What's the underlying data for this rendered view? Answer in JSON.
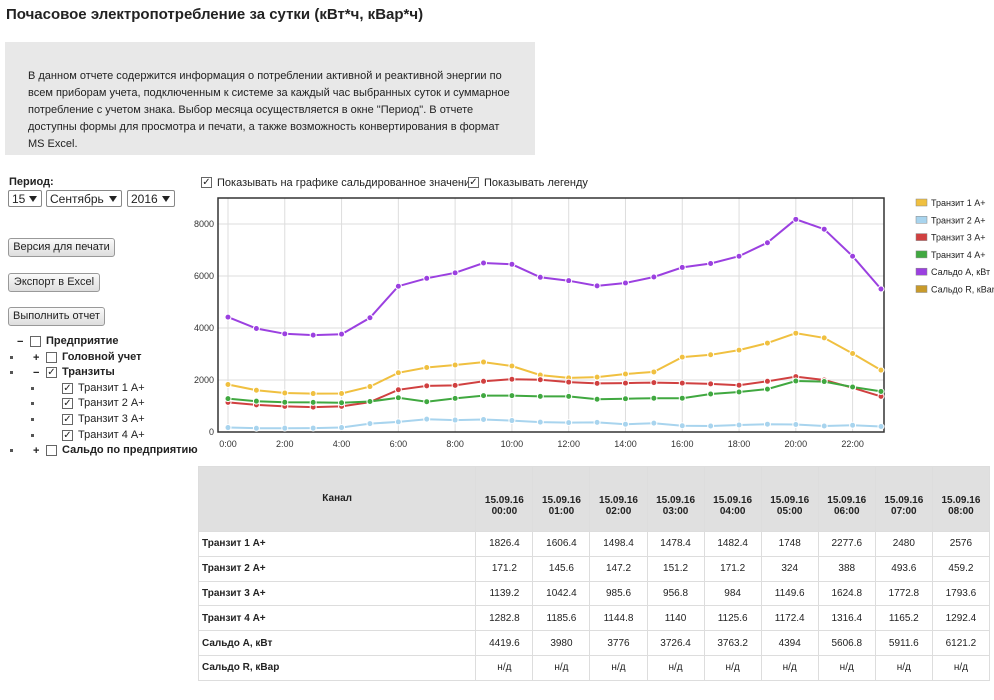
{
  "header": {
    "title": "Почасовое электропотребление за сутки (кВт*ч, кВар*ч)"
  },
  "intro": "В данном отчете содержится информация о потреблении активной и реактивной энергии по всем приборам учета, подключенным к системе за каждый час выбранных суток и суммарное потребление с учетом знака. Выбор месяца осуществляется в окне \"Период\". В отчете доступны формы для просмотра и печати, а также возможность конвертирования в формат MS Excel.",
  "period": {
    "label": "Период:",
    "day": "15",
    "month": "Сентябрь",
    "year": "2016"
  },
  "buttons": [
    "Версия для печати",
    "Экспорт в Excel",
    "Выполнить отчет"
  ],
  "options": [
    {
      "label": "Показывать на графике сальдированное значения",
      "checked": true
    },
    {
      "label": "Показывать легенду",
      "checked": true
    }
  ],
  "tree": [
    {
      "label": "Предприятие",
      "level": 0,
      "expander": "−",
      "checked": false,
      "bold": true
    },
    {
      "label": "Головной учет",
      "level": 1,
      "expander": "+",
      "checked": false,
      "bold": true
    },
    {
      "label": "Транзиты",
      "level": 1,
      "expander": "−",
      "checked": true,
      "bold": true
    },
    {
      "label": "Транзит 1 A+",
      "level": 2,
      "checked": true,
      "bold": false
    },
    {
      "label": "Транзит 2 A+",
      "level": 2,
      "checked": true,
      "bold": false
    },
    {
      "label": "Транзит 3 A+",
      "level": 2,
      "checked": true,
      "bold": false
    },
    {
      "label": "Транзит 4 A+",
      "level": 2,
      "checked": true,
      "bold": false
    },
    {
      "label": "Сальдо по предприятию",
      "level": 1,
      "expander": "+",
      "checked": false,
      "bold": true
    }
  ],
  "chart_data": {
    "type": "line",
    "categories": [
      "0:00",
      null,
      "2:00",
      null,
      "4:00",
      null,
      "6:00",
      null,
      "8:00",
      null,
      "10:00",
      null,
      "12:00",
      null,
      "14:00",
      null,
      "16:00",
      null,
      "18:00",
      null,
      "20:00",
      null,
      "22:00",
      null
    ],
    "ylim": [
      0,
      9000
    ],
    "yticks": [
      0,
      2000,
      4000,
      6000,
      8000
    ],
    "grid": true,
    "legend": "right",
    "series": [
      {
        "name": "Транзит 1 A+",
        "color": "#f0c040",
        "values": [
          1826.4,
          1606.4,
          1498.4,
          1478.4,
          1482.4,
          1748,
          2277.6,
          2480,
          2576,
          2690,
          2540,
          2190,
          2080,
          2110,
          2230,
          2310,
          2880,
          2970,
          3150,
          3420,
          3800,
          3620,
          3020,
          2380
        ]
      },
      {
        "name": "Транзит 2 A+",
        "color": "#a8d4ee",
        "values": [
          171.2,
          145.6,
          147.2,
          151.2,
          171.2,
          324,
          388,
          493.6,
          459.2,
          480,
          440,
          380,
          360,
          370,
          300,
          340,
          240,
          230,
          270,
          300,
          290,
          230,
          260,
          210
        ]
      },
      {
        "name": "Транзит 3 A+",
        "color": "#d04040",
        "values": [
          1139.2,
          1042.4,
          985.6,
          956.8,
          984,
          1149.6,
          1624.8,
          1772.8,
          1793.6,
          1950,
          2030,
          2010,
          1920,
          1870,
          1880,
          1900,
          1880,
          1850,
          1800,
          1950,
          2130,
          2000,
          1700,
          1370
        ]
      },
      {
        "name": "Транзит 4 A+",
        "color": "#40a840",
        "values": [
          1282.8,
          1185.6,
          1144.8,
          1140,
          1125.6,
          1172.4,
          1316.4,
          1165.2,
          1292.4,
          1400,
          1400,
          1370,
          1370,
          1260,
          1280,
          1300,
          1300,
          1460,
          1540,
          1650,
          1960,
          1940,
          1730,
          1560
        ]
      },
      {
        "name": "Сальдо А, кВт",
        "color": "#9b40e0",
        "values": [
          4419.6,
          3980,
          3776,
          3726.4,
          3763.2,
          4394,
          5606.8,
          5911.6,
          6121.2,
          6500,
          6450,
          5950,
          5820,
          5620,
          5730,
          5960,
          6330,
          6480,
          6760,
          7280,
          8180,
          7800,
          6760,
          5500
        ]
      },
      {
        "name": "Сальдо R, кВar",
        "color": "#c89a2a",
        "values": [
          null,
          null,
          null,
          null,
          null,
          null,
          null,
          null,
          null,
          null,
          null,
          null,
          null,
          null,
          null,
          null,
          null,
          null,
          null,
          null,
          null,
          null,
          null,
          null
        ]
      }
    ]
  },
  "table": {
    "channel_header": "Канал",
    "columns": [
      {
        "date": "15.09.16",
        "time": "00:00"
      },
      {
        "date": "15.09.16",
        "time": "01:00"
      },
      {
        "date": "15.09.16",
        "time": "02:00"
      },
      {
        "date": "15.09.16",
        "time": "03:00"
      },
      {
        "date": "15.09.16",
        "time": "04:00"
      },
      {
        "date": "15.09.16",
        "time": "05:00"
      },
      {
        "date": "15.09.16",
        "time": "06:00"
      },
      {
        "date": "15.09.16",
        "time": "07:00"
      },
      {
        "date": "15.09.16",
        "time": "08:00"
      }
    ],
    "rows": [
      {
        "name": "Транзит 1 A+",
        "values": [
          1826.4,
          1606.4,
          1498.4,
          1478.4,
          1482.4,
          1748,
          2277.6,
          2480,
          2576
        ]
      },
      {
        "name": "Транзит 2 A+",
        "values": [
          171.2,
          145.6,
          147.2,
          151.2,
          171.2,
          324,
          388,
          493.6,
          459.2
        ]
      },
      {
        "name": "Транзит 3 A+",
        "values": [
          1139.2,
          1042.4,
          985.6,
          956.8,
          984,
          1149.6,
          1624.8,
          1772.8,
          1793.6
        ]
      },
      {
        "name": "Транзит 4 A+",
        "values": [
          1282.8,
          1185.6,
          1144.8,
          1140,
          1125.6,
          1172.4,
          1316.4,
          1165.2,
          1292.4
        ]
      },
      {
        "name": "Сальдо А, кВт",
        "values": [
          4419.6,
          3980,
          3776,
          3726.4,
          3763.2,
          4394,
          5606.8,
          5911.6,
          6121.2
        ]
      },
      {
        "name": "Сальдо R, кВар",
        "values": [
          "н/д",
          "н/д",
          "н/д",
          "н/д",
          "н/д",
          "н/д",
          "н/д",
          "н/д",
          "н/д"
        ]
      }
    ]
  }
}
